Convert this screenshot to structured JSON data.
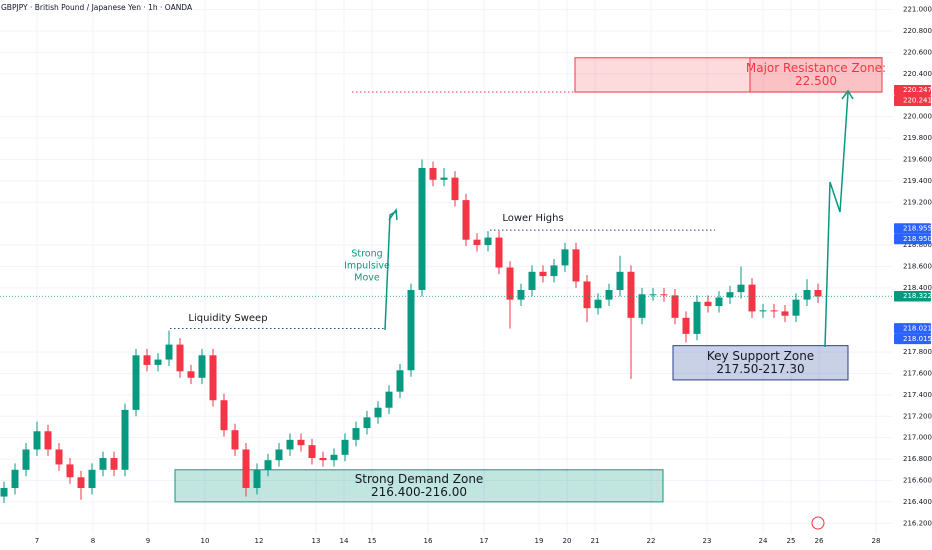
{
  "chart_data": {
    "type": "candlestick",
    "title": "GBPJPY · British Pound / Japanese Yen · 1h · OANDA",
    "up_color": "#089981",
    "down_color": "#f23645",
    "open": [
      216.45,
      216.53,
      216.7,
      216.89,
      217.06,
      216.89,
      216.75,
      216.63,
      216.53,
      216.7,
      216.81,
      216.7,
      217.26,
      217.77,
      217.68,
      217.73,
      217.87,
      217.62,
      217.56,
      217.77,
      217.35,
      217.07,
      216.89,
      216.53,
      216.7,
      216.79,
      216.89,
      216.98,
      216.93,
      216.81,
      216.79,
      216.84,
      216.98,
      217.09,
      217.19,
      217.28,
      217.43,
      217.63,
      218.38,
      219.52,
      219.41,
      219.43,
      219.22,
      218.85,
      218.8,
      218.87,
      218.59,
      218.29,
      218.38,
      218.55,
      218.51,
      218.61,
      218.76,
      218.46,
      218.21,
      218.29,
      218.38,
      218.55,
      218.12,
      218.34,
      218.34,
      218.33,
      218.12,
      217.97,
      218.27,
      218.23,
      218.31,
      218.36,
      218.43,
      218.18,
      218.19,
      218.18,
      218.14,
      218.29,
      218.38
    ],
    "high": [
      216.59,
      216.76,
      216.95,
      217.15,
      217.12,
      216.95,
      216.81,
      216.69,
      216.76,
      216.87,
      216.87,
      217.32,
      217.83,
      217.83,
      217.79,
      218.0,
      217.93,
      217.68,
      217.83,
      217.83,
      217.41,
      217.13,
      216.95,
      216.76,
      216.85,
      216.95,
      217.04,
      217.04,
      216.99,
      216.87,
      216.9,
      217.04,
      217.15,
      217.25,
      217.34,
      217.49,
      217.69,
      218.44,
      219.6,
      219.58,
      219.52,
      219.49,
      219.28,
      218.91,
      218.93,
      218.93,
      218.65,
      218.44,
      218.61,
      218.61,
      218.67,
      218.82,
      218.82,
      218.52,
      218.35,
      218.44,
      218.7,
      218.61,
      218.4,
      218.4,
      218.4,
      218.39,
      218.18,
      218.33,
      218.33,
      218.37,
      218.42,
      218.6,
      218.49,
      218.25,
      218.25,
      218.24,
      218.35,
      218.48,
      218.44
    ],
    "low": [
      216.39,
      216.47,
      216.64,
      216.83,
      216.83,
      216.69,
      216.57,
      216.42,
      216.47,
      216.64,
      216.64,
      216.64,
      217.2,
      217.62,
      217.62,
      217.67,
      217.56,
      217.5,
      217.5,
      217.29,
      217.01,
      216.83,
      216.45,
      216.47,
      216.64,
      216.73,
      216.83,
      216.87,
      216.75,
      216.73,
      216.73,
      216.78,
      216.92,
      217.03,
      217.13,
      217.22,
      217.37,
      217.57,
      218.32,
      219.35,
      219.35,
      219.16,
      218.79,
      218.74,
      218.74,
      218.53,
      218.02,
      218.23,
      218.32,
      218.45,
      218.45,
      218.55,
      218.4,
      218.08,
      218.15,
      218.23,
      218.32,
      217.55,
      218.06,
      218.28,
      218.27,
      218.06,
      217.89,
      217.91,
      218.17,
      218.17,
      218.25,
      218.3,
      218.12,
      218.12,
      218.12,
      218.08,
      218.08,
      218.23,
      218.26
    ],
    "close": [
      216.53,
      216.7,
      216.89,
      217.06,
      216.89,
      216.75,
      216.63,
      216.53,
      216.7,
      216.81,
      216.7,
      217.26,
      217.77,
      217.68,
      217.73,
      217.87,
      217.62,
      217.56,
      217.77,
      217.35,
      217.07,
      216.89,
      216.53,
      216.7,
      216.79,
      216.89,
      216.98,
      216.93,
      216.81,
      216.79,
      216.84,
      216.98,
      217.09,
      217.19,
      217.28,
      217.43,
      217.63,
      218.38,
      219.52,
      219.41,
      219.43,
      219.22,
      218.85,
      218.8,
      218.87,
      218.59,
      218.29,
      218.38,
      218.55,
      218.51,
      218.61,
      218.76,
      218.46,
      218.21,
      218.29,
      218.38,
      218.55,
      218.12,
      218.34,
      218.34,
      218.33,
      218.12,
      217.97,
      218.27,
      218.23,
      218.31,
      218.36,
      218.43,
      218.18,
      218.19,
      218.18,
      218.14,
      218.29,
      218.38,
      218.32
    ],
    "ylim": [
      216.1,
      221.09
    ],
    "yticks": [
      {
        "value": 221,
        "label": "221.000"
      },
      {
        "value": 220.8,
        "label": "220.800"
      },
      {
        "value": 220.6,
        "label": "220.600"
      },
      {
        "value": 220.4,
        "label": "220.400"
      },
      {
        "value": 220,
        "label": "220.000"
      },
      {
        "value": 219.8,
        "label": "219.800"
      },
      {
        "value": 219.6,
        "label": "219.600"
      },
      {
        "value": 219.4,
        "label": "219.400"
      },
      {
        "value": 219.2,
        "label": "219.200"
      },
      {
        "value": 218.8,
        "label": "218.800"
      },
      {
        "value": 218.6,
        "label": "218.600"
      },
      {
        "value": 218.4,
        "label": "218.400"
      },
      {
        "value": 217.8,
        "label": "217.800"
      },
      {
        "value": 217.6,
        "label": "217.600"
      },
      {
        "value": 217.4,
        "label": "217.400"
      },
      {
        "value": 217.2,
        "label": "217.200"
      },
      {
        "value": 217,
        "label": "217.000"
      },
      {
        "value": 216.8,
        "label": "216.800"
      },
      {
        "value": 216.6,
        "label": "216.600"
      },
      {
        "value": 216.4,
        "label": "216.400"
      },
      {
        "value": 216.2,
        "label": "216.200"
      }
    ],
    "x_labels": [
      "7",
      "8",
      "9",
      "10",
      "12",
      "13",
      "14",
      "15",
      "16",
      "17",
      "19",
      "20",
      "21",
      "22",
      "23",
      "24",
      "25",
      "26",
      "28"
    ],
    "grid": true,
    "price_labels": [
      {
        "value": 220.247,
        "color": "#f23645"
      },
      {
        "value": 220.241,
        "color": "#f23645"
      },
      {
        "value": 218.955,
        "color": "#2962ff"
      },
      {
        "value": 218.95,
        "label": "218.950",
        "color": "#2962ff"
      },
      {
        "value": 218.322,
        "color": "#089981"
      },
      {
        "value": 218.021,
        "color": "#2962ff"
      },
      {
        "value": 218.015,
        "color": "#2962ff"
      }
    ],
    "zones": [
      {
        "text": [
          "Major Resistance Zone:",
          "22.500"
        ],
        "top": 220.55,
        "bottom": 220.23,
        "color": "#f23645"
      },
      {
        "text": [
          "Strong Demand Zone",
          "216.400-216.00"
        ],
        "top": 216.7,
        "bottom": 216.4,
        "color": "#089981"
      },
      {
        "text": [
          "Key Support Zone",
          "217.50-217.30"
        ],
        "top": 217.86,
        "bottom": 217.54,
        "color": "#2a3f8a"
      }
    ],
    "levels": [
      {
        "value": 218.02,
        "color": "#2a3f8a"
      },
      {
        "value": 218.94,
        "color": "#2a3f8a"
      },
      {
        "value": 220.23,
        "color": "#f23645"
      }
    ],
    "annotations": [
      {
        "text": [
          "Liquidity Sweep"
        ],
        "color": "#131722"
      },
      {
        "text": [
          "Strong",
          "Impulsive",
          "Move"
        ],
        "color": "#089981"
      },
      {
        "text": [
          "Lower Highs"
        ],
        "color": "#131722"
      }
    ]
  }
}
